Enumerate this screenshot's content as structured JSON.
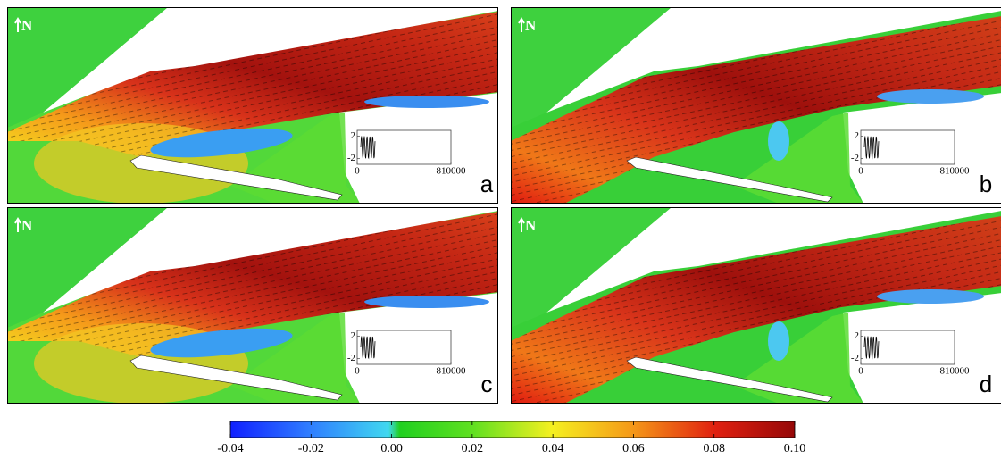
{
  "panels": [
    {
      "label": "a",
      "north": "N",
      "inset": {
        "xlim": [
          0,
          810000
        ],
        "ylim": [
          -3,
          3
        ],
        "xticks": [
          0,
          810000
        ],
        "yticks": [
          2,
          -2
        ]
      }
    },
    {
      "label": "b",
      "north": "N",
      "inset": {
        "xlim": [
          0,
          810000
        ],
        "ylim": [
          -3,
          3
        ],
        "xticks": [
          0,
          810000
        ],
        "yticks": [
          2,
          -2
        ]
      }
    },
    {
      "label": "c",
      "north": "N",
      "inset": {
        "xlim": [
          0,
          810000
        ],
        "ylim": [
          -3,
          3
        ],
        "xticks": [
          0,
          810000
        ],
        "yticks": [
          2,
          -2
        ]
      }
    },
    {
      "label": "d",
      "north": "N",
      "inset": {
        "xlim": [
          0,
          810000
        ],
        "ylim": [
          -3,
          3
        ],
        "xticks": [
          0,
          810000
        ],
        "yticks": [
          2,
          -2
        ]
      }
    }
  ],
  "colorbar": {
    "lim": [
      -0.04,
      0.1
    ],
    "ticks": [
      -0.04,
      -0.02,
      {
        "value": 0,
        "label": "0.00"
      },
      0.02,
      0.04,
      0.06,
      0.08,
      {
        "value": 0.1,
        "label": "0.10"
      }
    ]
  }
}
